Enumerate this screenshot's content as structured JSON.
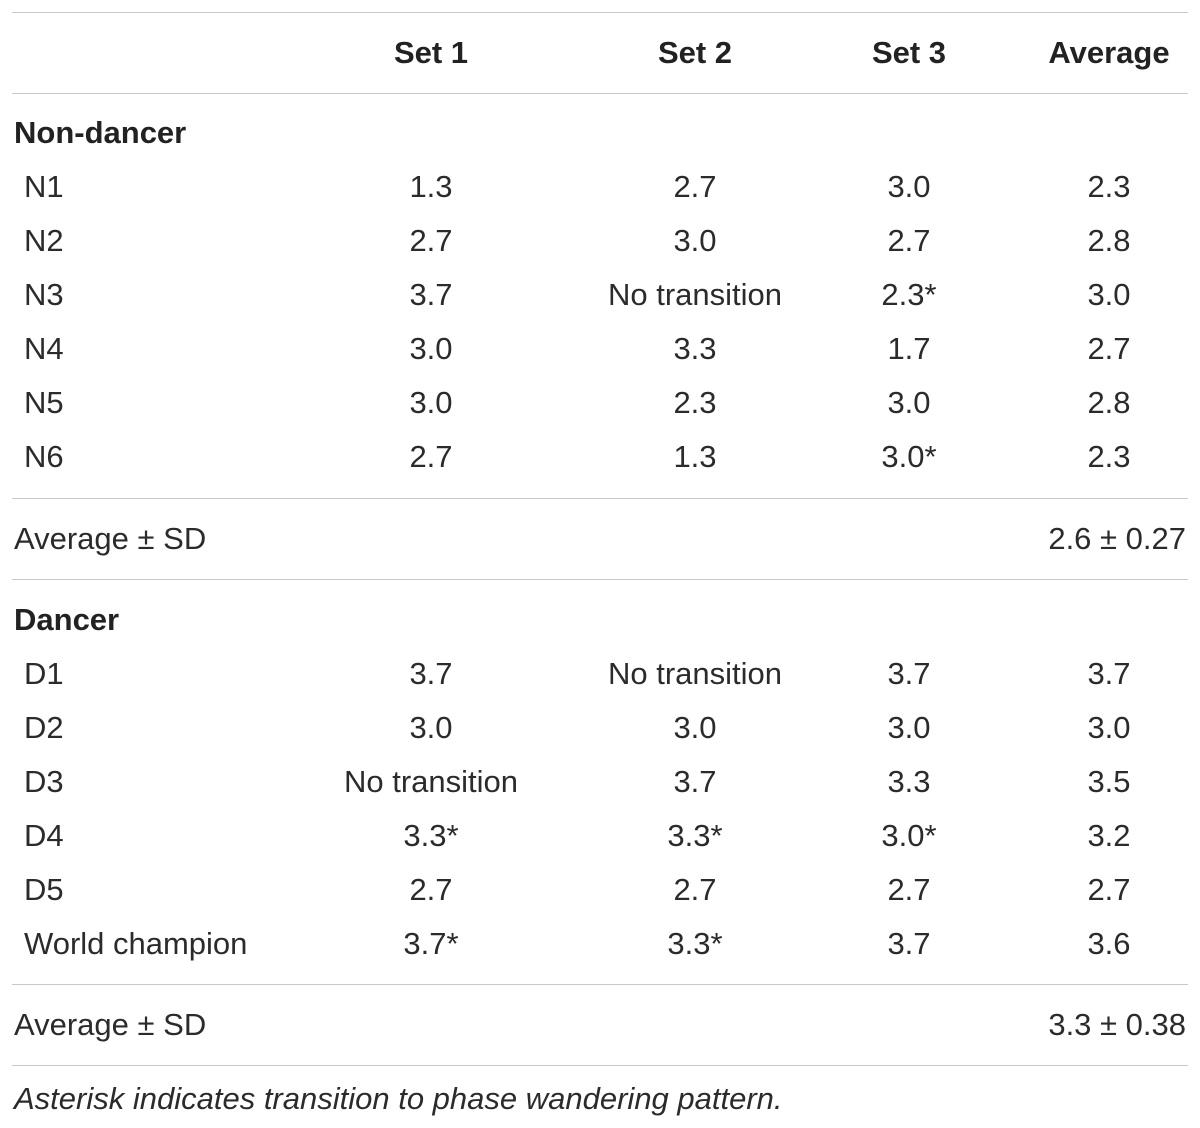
{
  "header": {
    "label": "",
    "columns": [
      "Set 1",
      "Set 2",
      "Set 3",
      "Average"
    ]
  },
  "groups": [
    {
      "title": "Non-dancer",
      "rows": [
        {
          "label": "N1",
          "set1": "1.3",
          "set2": "2.7",
          "set3": "3.0",
          "avg": "2.3"
        },
        {
          "label": "N2",
          "set1": "2.7",
          "set2": "3.0",
          "set3": "2.7",
          "avg": "2.8"
        },
        {
          "label": "N3",
          "set1": "3.7",
          "set2": "No transition",
          "set3": "2.3*",
          "avg": "3.0"
        },
        {
          "label": "N4",
          "set1": "3.0",
          "set2": "3.3",
          "set3": "1.7",
          "avg": "2.7"
        },
        {
          "label": "N5",
          "set1": "3.0",
          "set2": "2.3",
          "set3": "3.0",
          "avg": "2.8"
        },
        {
          "label": "N6",
          "set1": "2.7",
          "set2": "1.3",
          "set3": "3.0*",
          "avg": "2.3"
        }
      ],
      "summary_label": "Average ± SD",
      "summary_value": "2.6 ± 0.27"
    },
    {
      "title": "Dancer",
      "rows": [
        {
          "label": "D1",
          "set1": "3.7",
          "set2": "No transition",
          "set3": "3.7",
          "avg": "3.7"
        },
        {
          "label": "D2",
          "set1": "3.0",
          "set2": "3.0",
          "set3": "3.0",
          "avg": "3.0"
        },
        {
          "label": "D3",
          "set1": "No transition",
          "set2": "3.7",
          "set3": "3.3",
          "avg": "3.5"
        },
        {
          "label": "D4",
          "set1": "3.3*",
          "set2": "3.3*",
          "set3": "3.0*",
          "avg": "3.2"
        },
        {
          "label": "D5",
          "set1": "2.7",
          "set2": "2.7",
          "set3": "2.7",
          "avg": "2.7"
        },
        {
          "label": "World champion",
          "set1": "3.7*",
          "set2": "3.3*",
          "set3": "3.7",
          "avg": "3.6"
        }
      ],
      "summary_label": "Average ± SD",
      "summary_value": "3.3 ± 0.38"
    }
  ],
  "footnote": "Asterisk indicates transition to phase wandering pattern."
}
